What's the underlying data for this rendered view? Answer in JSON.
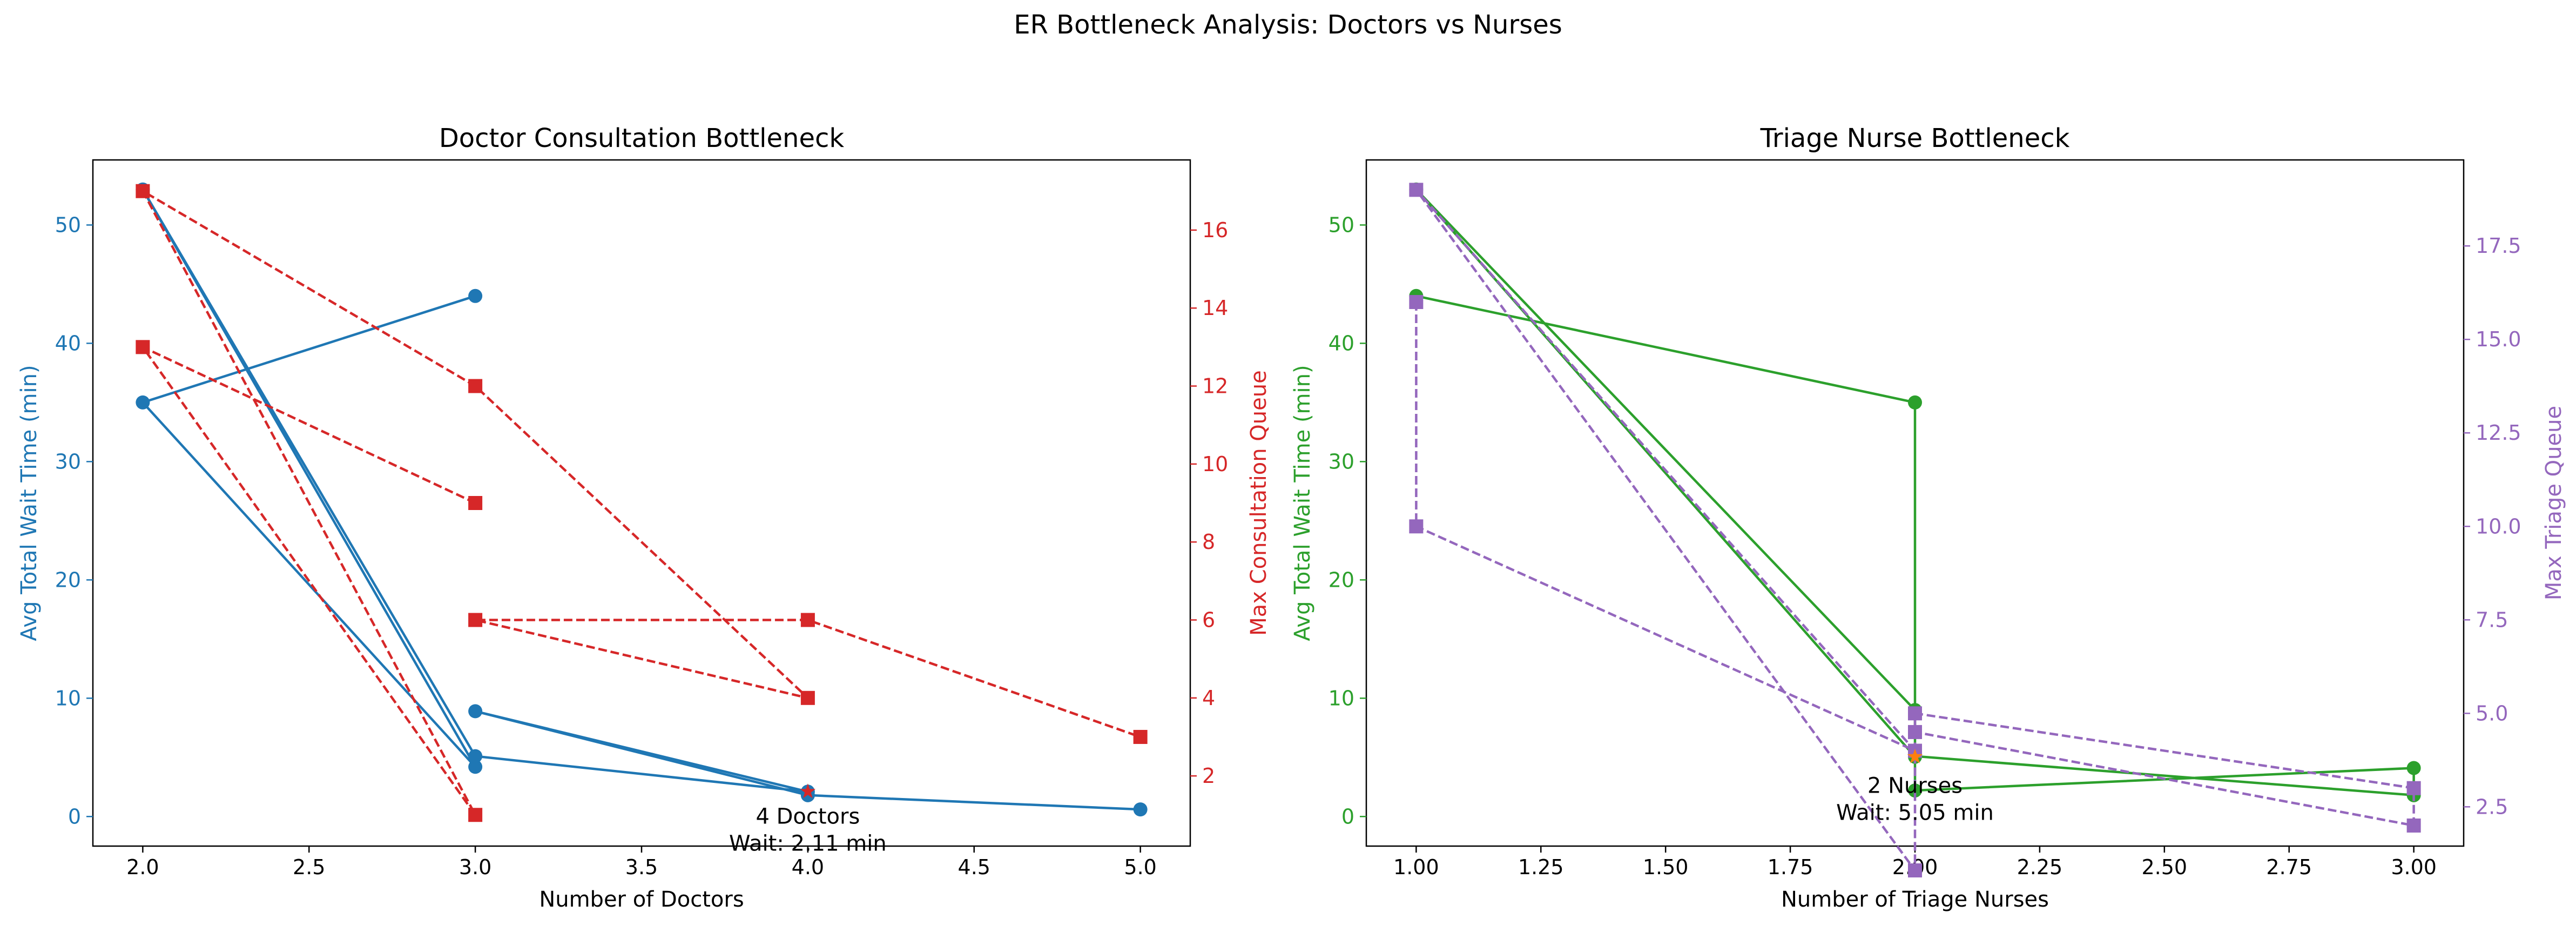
{
  "suptitle": "ER Bottleneck Analysis: Doctors vs Nurses",
  "chart_data": [
    {
      "type": "line",
      "title": "Doctor Consultation Bottleneck",
      "xlabel": "Number of Doctors",
      "ylabel": "Avg Total Wait Time (min)",
      "ylabel_right": "Max Consultation Queue",
      "xlim": [
        1.85,
        5.15
      ],
      "ylim": [
        -2.5,
        55.5
      ],
      "ylim_right": [
        0.2,
        17.8
      ],
      "xticks": [
        "2.0",
        "2.5",
        "3.0",
        "3.5",
        "4.0",
        "4.5",
        "5.0"
      ],
      "yticks": [
        "0",
        "10",
        "20",
        "30",
        "40",
        "50"
      ],
      "yticks_right": [
        "2",
        "4",
        "6",
        "8",
        "10",
        "12",
        "14",
        "16"
      ],
      "grid": false,
      "series": [
        {
          "axis": "left",
          "color": "#1f77b4",
          "marker": "circle",
          "linestyle": "solid",
          "x": [
            3,
            2,
            3,
            2,
            3,
            4,
            3,
            4,
            5
          ],
          "y": [
            44,
            35,
            4.2,
            53,
            5.1,
            2.1,
            8.9,
            1.8,
            0.6
          ]
        },
        {
          "axis": "right",
          "color": "#d62728",
          "marker": "square",
          "linestyle": "dashed",
          "x": [
            3,
            2,
            3,
            2,
            3,
            4,
            3,
            4,
            5
          ],
          "y": [
            9,
            13,
            1,
            17,
            12,
            4,
            6,
            6,
            3
          ]
        }
      ],
      "highlight": {
        "x": 4,
        "y": 2.11,
        "color": "#d62728",
        "marker": "star"
      },
      "annotations": [
        {
          "x": 4,
          "y": -0.6,
          "lines": [
            "4 Doctors",
            "Wait: 2.11 min"
          ]
        }
      ]
    },
    {
      "type": "line",
      "title": "Triage Nurse Bottleneck",
      "xlabel": "Number of Triage Nurses",
      "ylabel": "Avg Total Wait Time (min)",
      "ylabel_right": "Max Triage Queue",
      "xlim": [
        0.9,
        3.1
      ],
      "ylim": [
        -2.5,
        55.5
      ],
      "ylim_right": [
        1.45,
        19.8
      ],
      "xticks": [
        "1.00",
        "1.25",
        "1.50",
        "1.75",
        "2.00",
        "2.25",
        "2.50",
        "2.75",
        "3.00"
      ],
      "yticks": [
        "0",
        "10",
        "20",
        "30",
        "40",
        "50"
      ],
      "yticks_right": [
        "2.5",
        "5.0",
        "7.5",
        "10.0",
        "12.5",
        "15.0",
        "17.5"
      ],
      "grid": false,
      "series": [
        {
          "axis": "left",
          "color": "#2ca02c",
          "marker": "circle",
          "linestyle": "solid",
          "x": [
            1,
            2,
            2,
            1,
            2,
            2,
            3,
            3,
            2
          ],
          "y": [
            44,
            35,
            5.05,
            53,
            9,
            2.2,
            4.1,
            1.8,
            5.1
          ]
        },
        {
          "axis": "right",
          "color": "#9467bd",
          "marker": "square",
          "linestyle": "dashed",
          "x": [
            1,
            1,
            2,
            1,
            2,
            2,
            3,
            3,
            2
          ],
          "y": [
            16,
            10,
            4,
            19,
            0.8,
            5,
            3,
            2,
            4.5
          ]
        }
      ],
      "highlight": {
        "x": 2,
        "y": 5.05,
        "color": "#ff7f0e",
        "marker": "star"
      },
      "annotations": [
        {
          "x": 2,
          "y": 2.0,
          "lines": [
            "2 Nurses",
            "Wait: 5.05 min"
          ]
        }
      ]
    }
  ]
}
